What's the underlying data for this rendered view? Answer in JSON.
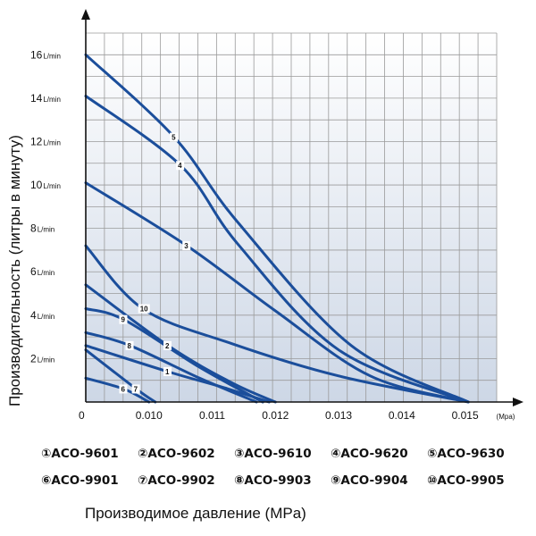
{
  "chart_data": {
    "type": "line",
    "ylabel": "Производительность (литры в минуту)",
    "xlabel": "Производимое давление (MPa)",
    "x_unit": "(Mpa)",
    "y_unit": "L/min",
    "x_origin_label": "0",
    "x_ticks": [
      "0.010",
      "0.011",
      "0.012",
      "0.013",
      "0.014",
      "0.015"
    ],
    "y_ticks": [
      2,
      4,
      6,
      8,
      10,
      12,
      14,
      16
    ],
    "xlim": [
      0.009,
      0.0155
    ],
    "ylim": [
      0,
      17
    ],
    "grid": true,
    "series": [
      {
        "name": "ACO-9601",
        "label": "1",
        "points": [
          [
            0.009,
            2.6
          ],
          [
            0.0103,
            1.4
          ],
          [
            0.0112,
            0.65
          ],
          [
            0.0119,
            0
          ]
        ]
      },
      {
        "name": "ACO-9602",
        "label": "2",
        "points": [
          [
            0.009,
            5.4
          ],
          [
            0.0103,
            2.6
          ],
          [
            0.0113,
            0.9
          ],
          [
            0.012,
            0
          ]
        ]
      },
      {
        "name": "ACO-9610",
        "label": "3",
        "points": [
          [
            0.009,
            10.1
          ],
          [
            0.0106,
            7.2
          ],
          [
            0.012,
            4.2
          ],
          [
            0.0135,
            1.2
          ],
          [
            0.01505,
            0
          ]
        ]
      },
      {
        "name": "ACO-9620",
        "label": "4",
        "points": [
          [
            0.009,
            14.1
          ],
          [
            0.0105,
            10.9
          ],
          [
            0.0114,
            7.3
          ],
          [
            0.013,
            2.4
          ],
          [
            0.01505,
            0
          ]
        ]
      },
      {
        "name": "ACO-9630",
        "label": "5",
        "points": [
          [
            0.009,
            16.0
          ],
          [
            0.0104,
            12.2
          ],
          [
            0.0114,
            8.3
          ],
          [
            0.0132,
            2.6
          ],
          [
            0.01505,
            0
          ]
        ]
      },
      {
        "name": "ACO-9901",
        "label": "6",
        "points": [
          [
            0.009,
            1.1
          ],
          [
            0.0096,
            0.6
          ],
          [
            0.01,
            0
          ]
        ]
      },
      {
        "name": "ACO-9902",
        "label": "7",
        "points": [
          [
            0.009,
            2.4
          ],
          [
            0.0098,
            0.6
          ],
          [
            0.0101,
            0
          ]
        ]
      },
      {
        "name": "ACO-9903",
        "label": "8",
        "points": [
          [
            0.009,
            3.2
          ],
          [
            0.0097,
            2.6
          ],
          [
            0.0108,
            1.1
          ],
          [
            0.0117,
            0
          ]
        ]
      },
      {
        "name": "ACO-9904",
        "label": "9",
        "points": [
          [
            0.009,
            4.3
          ],
          [
            0.0096,
            3.8
          ],
          [
            0.0108,
            1.6
          ],
          [
            0.0118,
            0
          ]
        ]
      },
      {
        "name": "ACO-9905",
        "label": "10",
        "points": [
          [
            0.009,
            7.2
          ],
          [
            0.0099,
            4.3
          ],
          [
            0.0113,
            2.7
          ],
          [
            0.013,
            1.2
          ],
          [
            0.01505,
            0
          ]
        ]
      }
    ]
  },
  "legend": {
    "row1": [
      "①ACO-9601",
      "②ACO-9602",
      "③ACO-9610",
      "④ACO-9620",
      "⑤ACO-9630"
    ],
    "row2": [
      "⑥ACO-9901",
      "⑦ACO-9902",
      "⑧ACO-9903",
      "⑨ACO-9904",
      "⑩ACO-9905"
    ]
  },
  "colors": {
    "line": "#1b4e9b",
    "grid": "#9a9a9a",
    "plot_bg_top": "#ffffff",
    "plot_bg_bottom": "#cdd7e6"
  }
}
